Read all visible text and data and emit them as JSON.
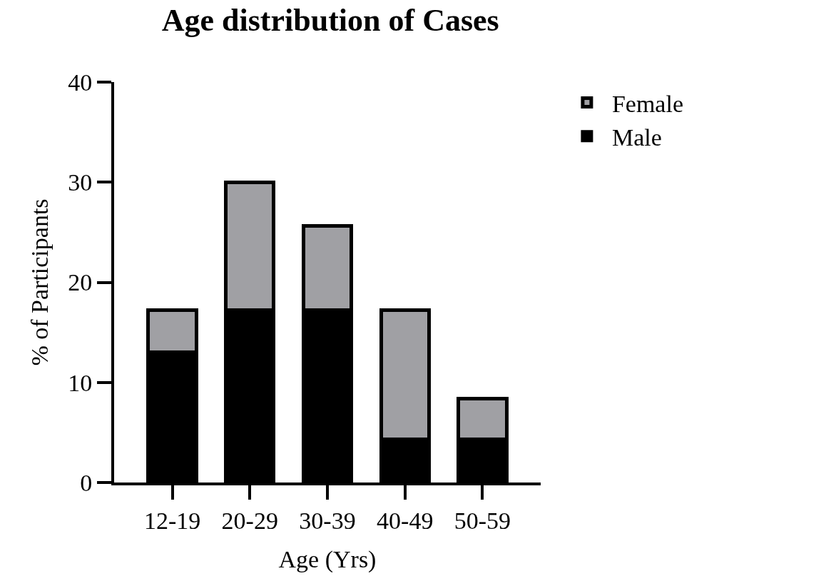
{
  "chart_data": {
    "type": "bar",
    "title": "Age distribution of Cases",
    "xlabel": "Age (Yrs)",
    "ylabel": "% of Participants",
    "categories": [
      "12-19",
      "20-29",
      "30-39",
      "40-49",
      "50-59"
    ],
    "stacked": true,
    "series": [
      {
        "name": "Male",
        "color": "#000000",
        "values": [
          13,
          17.2,
          17.2,
          4.3,
          4.3
        ]
      },
      {
        "name": "Female",
        "color": "#a0a0a4",
        "values": [
          4.2,
          12.8,
          8.4,
          12.9,
          4.1
        ]
      }
    ],
    "ylim": [
      0,
      40
    ],
    "yticks": [
      0,
      10,
      20,
      30,
      40
    ],
    "grid": false,
    "legend": "top right"
  }
}
